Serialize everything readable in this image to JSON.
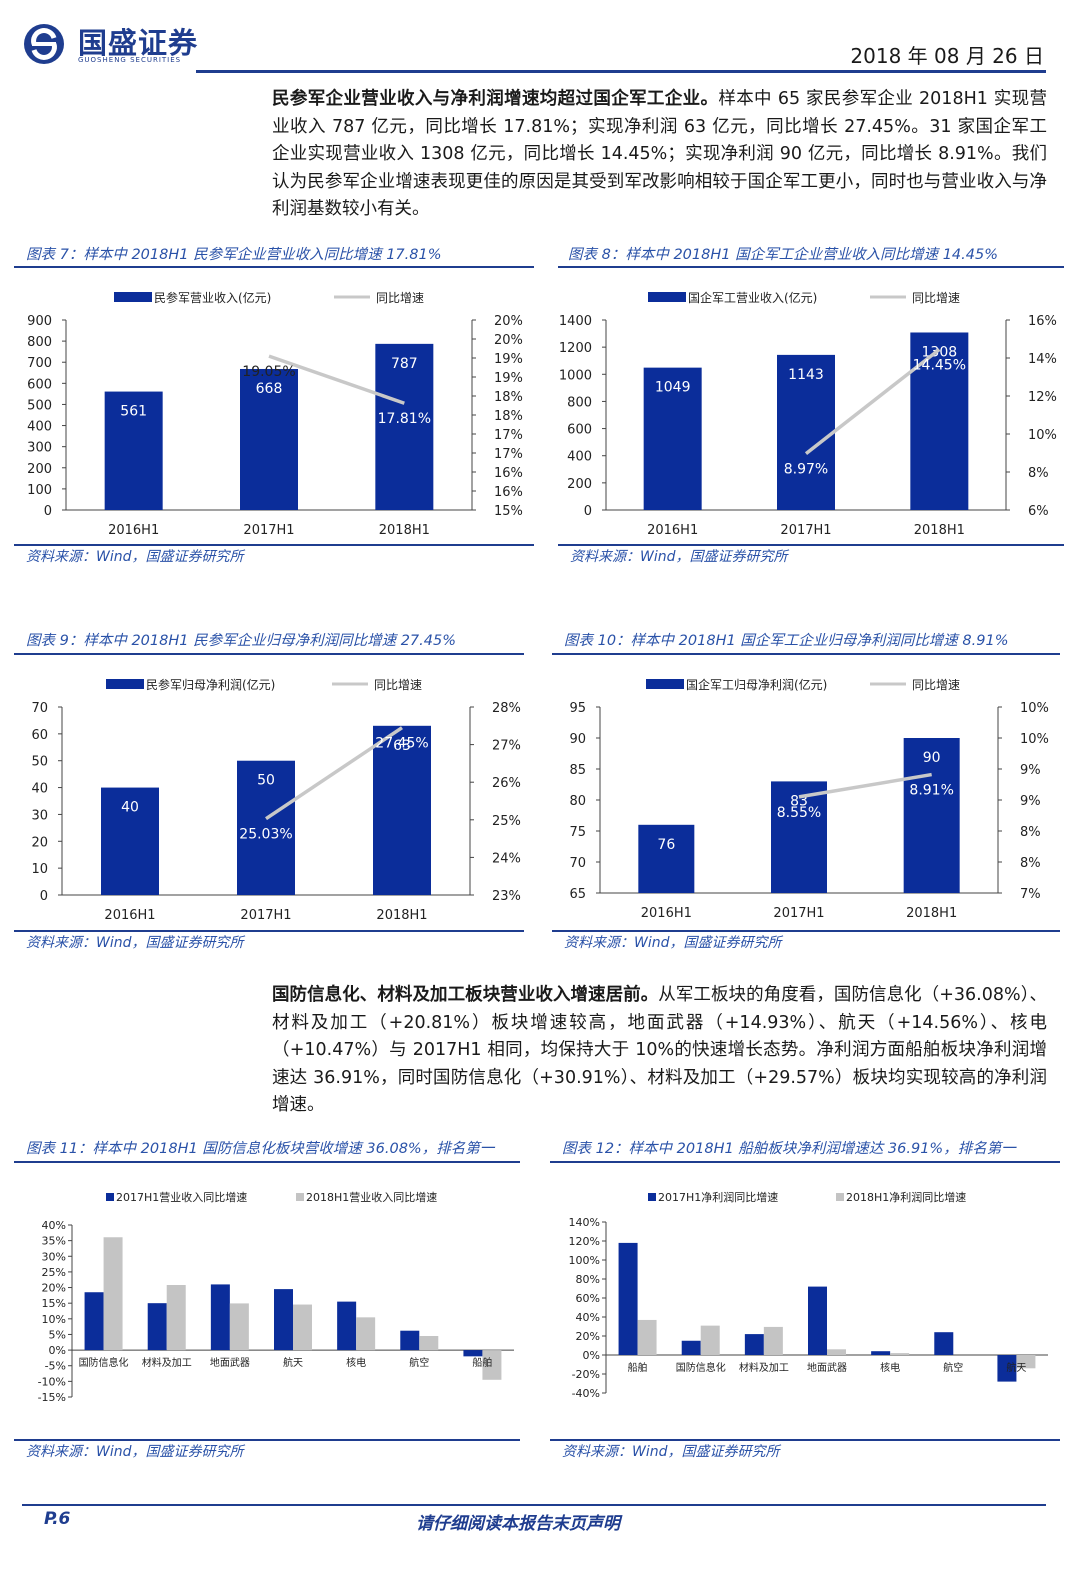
{
  "header": {
    "logo_text": "国盛证券",
    "logo_subtext": "GUOSHENG SECURITIES",
    "date": "2018 年 08 月 26 日"
  },
  "para1": {
    "bold": "民参军企业营业收入与净利润增速均超过国企军工企业。",
    "text": "样本中 65 家民参军企业 2018H1 实现营业收入 787 亿元，同比增长 17.81%；实现净利润 63 亿元，同比增长 27.45%。31 家国企军工企业实现营业收入 1308 亿元，同比增长 14.45%；实现净利润 90 亿元，同比增长 8.91%。我们认为民参军企业增速表现更佳的原因是其受到军改影响相较于国企军工更小，同时也与营业收入与净利润基数较小有关。"
  },
  "para2": {
    "bold": "国防信息化、材料及加工板块营业收入增速居前。",
    "text": "从军工板块的角度看，国防信息化（+36.08%）、材料及加工（+20.81%）板块增速较高，地面武器（+14.93%）、航天（+14.56%）、核电（+10.47%）与 2017H1 相同，均保持大于 10%的快速增长态势。净利润方面船舶板块净利润增速达 36.91%，同时国防信息化（+30.91%）、材料及加工（+29.57%）板块均实现较高的净利润增速。"
  },
  "source_text": "资料来源：Wind，国盛证券研究所",
  "footer": {
    "page": "P.6",
    "note": "请仔细阅读本报告末页声明"
  },
  "chart_data": [
    {
      "id": "fig7",
      "fig_title": "图表 7：样本中 2018H1 民参军企业营业收入同比增速 17.81%",
      "type": "bar",
      "categories": [
        "2016H1",
        "2017H1",
        "2018H1"
      ],
      "series": [
        {
          "name": "民参军营业收入(亿元)",
          "type": "bar",
          "axis": "left",
          "color": "#0b2d9a",
          "values": [
            561,
            668,
            787
          ],
          "labels": [
            "561",
            "668",
            "787"
          ]
        },
        {
          "name": "同比增速",
          "type": "line",
          "axis": "right",
          "color": "#c8c8c8",
          "values": [
            null,
            19.05,
            17.81
          ],
          "labels": [
            "",
            "19.05%",
            "17.81%"
          ]
        }
      ],
      "ylim": [
        0,
        900
      ],
      "yticks": [
        "0",
        "100",
        "200",
        "300",
        "400",
        "500",
        "600",
        "700",
        "800",
        "900"
      ],
      "y2lim": [
        15,
        20
      ],
      "y2ticks": [
        "15%",
        "16%",
        "16%",
        "17%",
        "17%",
        "18%",
        "18%",
        "19%",
        "19%",
        "20%",
        "20%"
      ],
      "legend": "top"
    },
    {
      "id": "fig8",
      "fig_title": "图表 8：样本中 2018H1 国企军工企业营业收入同比增速 14.45%",
      "type": "bar",
      "categories": [
        "2016H1",
        "2017H1",
        "2018H1"
      ],
      "series": [
        {
          "name": "国企军工营业收入(亿元)",
          "type": "bar",
          "axis": "left",
          "color": "#0b2d9a",
          "values": [
            1049,
            1143,
            1308
          ],
          "labels": [
            "1049",
            "1143",
            "1308"
          ]
        },
        {
          "name": "同比增速",
          "type": "line",
          "axis": "right",
          "color": "#c8c8c8",
          "values": [
            null,
            8.97,
            14.45
          ],
          "labels": [
            "",
            "8.97%",
            "14.45%"
          ]
        }
      ],
      "ylim": [
        0,
        1400
      ],
      "yticks": [
        "0",
        "200",
        "400",
        "600",
        "800",
        "1000",
        "1200",
        "1400"
      ],
      "y2lim": [
        6,
        16
      ],
      "y2ticks": [
        "6%",
        "8%",
        "10%",
        "12%",
        "14%",
        "16%"
      ],
      "legend": "top"
    },
    {
      "id": "fig9",
      "fig_title": "图表 9：样本中 2018H1 民参军企业归母净利润同比增速 27.45%",
      "type": "bar",
      "categories": [
        "2016H1",
        "2017H1",
        "2018H1"
      ],
      "series": [
        {
          "name": "民参军归母净利润(亿元)",
          "type": "bar",
          "axis": "left",
          "color": "#0b2d9a",
          "values": [
            40,
            50,
            63
          ],
          "labels": [
            "40",
            "50",
            "63"
          ]
        },
        {
          "name": "同比增速",
          "type": "line",
          "axis": "right",
          "color": "#c8c8c8",
          "values": [
            null,
            25.03,
            27.45
          ],
          "labels": [
            "",
            "25.03%",
            "27.45%"
          ]
        }
      ],
      "ylim": [
        0,
        70
      ],
      "yticks": [
        "0",
        "10",
        "20",
        "30",
        "40",
        "50",
        "60",
        "70"
      ],
      "y2lim": [
        23,
        28
      ],
      "y2ticks": [
        "23%",
        "24%",
        "25%",
        "26%",
        "27%",
        "28%"
      ],
      "legend": "top"
    },
    {
      "id": "fig10",
      "fig_title": "图表 10：样本中 2018H1 国企军工企业归母净利润同比增速 8.91%",
      "type": "bar",
      "categories": [
        "2016H1",
        "2017H1",
        "2018H1"
      ],
      "series": [
        {
          "name": "国企军工归母净利润(亿元)",
          "type": "bar",
          "axis": "left",
          "color": "#0b2d9a",
          "values": [
            76,
            83,
            90
          ],
          "labels": [
            "76",
            "83",
            "90"
          ]
        },
        {
          "name": "同比增速",
          "type": "line",
          "axis": "right",
          "color": "#c8c8c8",
          "values": [
            null,
            8.55,
            8.91
          ],
          "labels": [
            "",
            "8.55%",
            "8.91%"
          ]
        }
      ],
      "ylim": [
        65,
        95
      ],
      "yticks": [
        "65",
        "70",
        "75",
        "80",
        "85",
        "90",
        "95"
      ],
      "y2lim": [
        7,
        10
      ],
      "y2ticks": [
        "7%",
        "8%",
        "8%",
        "9%",
        "9%",
        "10%",
        "10%"
      ],
      "legend": "top"
    },
    {
      "id": "fig11",
      "fig_title": "图表 11：样本中 2018H1 国防信息化板块营收增速 36.08%，排名第一",
      "type": "bar",
      "categories": [
        "国防信息化",
        "材料及加工",
        "地面武器",
        "航天",
        "核电",
        "航空",
        "船舶"
      ],
      "series": [
        {
          "name": "2017H1营业收入同比增速",
          "type": "bar",
          "color": "#0b2d9a",
          "values": [
            18.5,
            15.0,
            21.0,
            19.5,
            15.5,
            6.2,
            -2.0
          ]
        },
        {
          "name": "2018H1营业收入同比增速",
          "type": "bar",
          "color": "#c4c4c4",
          "values": [
            36.08,
            20.81,
            14.93,
            14.56,
            10.47,
            4.5,
            -9.5
          ]
        }
      ],
      "ylim": [
        -15,
        40
      ],
      "yticks": [
        "-15%",
        "-10%",
        "-5%",
        "0%",
        "5%",
        "10%",
        "15%",
        "20%",
        "25%",
        "30%",
        "35%",
        "40%"
      ],
      "legend": "top"
    },
    {
      "id": "fig12",
      "fig_title": "图表 12：样本中 2018H1 船舶板块净利润增速达 36.91%，排名第一",
      "type": "bar",
      "categories": [
        "船舶",
        "国防信息化",
        "材料及加工",
        "地面武器",
        "核电",
        "航空",
        "航天"
      ],
      "series": [
        {
          "name": "2017H1净利润同比增速",
          "type": "bar",
          "color": "#0b2d9a",
          "values": [
            118,
            15,
            22,
            72,
            4,
            24,
            -28
          ]
        },
        {
          "name": "2018H1净利润同比增速",
          "type": "bar",
          "color": "#c4c4c4",
          "values": [
            36.91,
            30.91,
            29.57,
            6,
            2,
            0,
            -14
          ]
        }
      ],
      "ylim": [
        -40,
        140
      ],
      "yticks": [
        "-40%",
        "-20%",
        "0%",
        "20%",
        "40%",
        "60%",
        "80%",
        "100%",
        "120%",
        "140%"
      ],
      "legend": "top"
    }
  ]
}
